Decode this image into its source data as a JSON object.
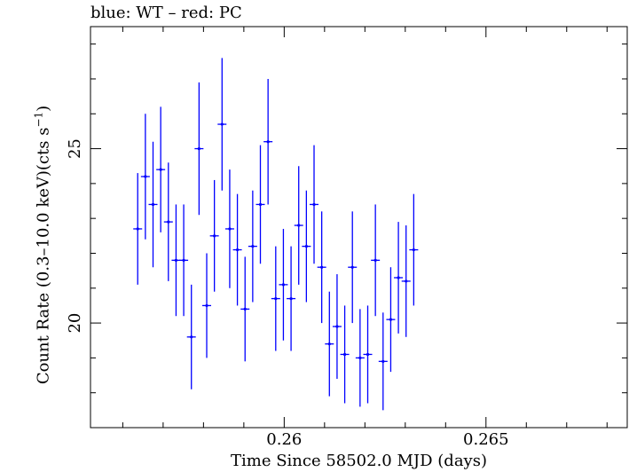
{
  "title": "blue: WT – red: PC",
  "chart_data": {
    "type": "scatter",
    "title": "blue: WT – red: PC",
    "xlabel": "Time Since 58502.0 MJD (days)",
    "ylabel_main": "Count Rate (0.3–10.0 keV)(cts s",
    "ylabel_sup": "−1",
    "ylabel_end": ")",
    "xlim": [
      0.2552,
      0.2685
    ],
    "ylim": [
      17.0,
      28.5
    ],
    "xticks_major": [
      0.26,
      0.265
    ],
    "xtick_labels": [
      "0.26",
      "0.265"
    ],
    "xticks_minor": [
      0.256,
      0.257,
      0.258,
      0.259,
      0.261,
      0.262,
      0.263,
      0.264,
      0.266,
      0.267,
      0.268
    ],
    "yticks_major": [
      20,
      25
    ],
    "ytick_labels": [
      "20",
      "25"
    ],
    "yticks_minor": [
      18,
      19,
      21,
      22,
      23,
      24,
      26,
      27,
      28
    ],
    "grid": false,
    "x_half_width": 0.00011,
    "series": [
      {
        "color": "#0000ff",
        "points": [
          {
            "x": 0.25637,
            "y": 22.7,
            "err": 1.6
          },
          {
            "x": 0.25656,
            "y": 24.2,
            "err": 1.8
          },
          {
            "x": 0.25675,
            "y": 23.4,
            "err": 1.8
          },
          {
            "x": 0.25694,
            "y": 24.4,
            "err": 1.8
          },
          {
            "x": 0.25713,
            "y": 22.9,
            "err": 1.7
          },
          {
            "x": 0.25732,
            "y": 21.8,
            "err": 1.6
          },
          {
            "x": 0.25751,
            "y": 21.8,
            "err": 1.6
          },
          {
            "x": 0.2577,
            "y": 19.6,
            "err": 1.5
          },
          {
            "x": 0.25789,
            "y": 25.0,
            "err": 1.9
          },
          {
            "x": 0.25808,
            "y": 20.5,
            "err": 1.5
          },
          {
            "x": 0.25827,
            "y": 22.5,
            "err": 1.6
          },
          {
            "x": 0.25846,
            "y": 25.7,
            "err": 1.9
          },
          {
            "x": 0.25865,
            "y": 22.7,
            "err": 1.7
          },
          {
            "x": 0.25884,
            "y": 22.1,
            "err": 1.6
          },
          {
            "x": 0.25903,
            "y": 20.4,
            "err": 1.5
          },
          {
            "x": 0.25922,
            "y": 22.2,
            "err": 1.6
          },
          {
            "x": 0.25941,
            "y": 23.4,
            "err": 1.7
          },
          {
            "x": 0.2596,
            "y": 25.2,
            "err": 1.8
          },
          {
            "x": 0.25979,
            "y": 20.7,
            "err": 1.5
          },
          {
            "x": 0.25998,
            "y": 21.1,
            "err": 1.6
          },
          {
            "x": 0.26017,
            "y": 20.7,
            "err": 1.5
          },
          {
            "x": 0.26036,
            "y": 22.8,
            "err": 1.7
          },
          {
            "x": 0.26055,
            "y": 22.2,
            "err": 1.6
          },
          {
            "x": 0.26074,
            "y": 23.4,
            "err": 1.7
          },
          {
            "x": 0.26093,
            "y": 21.6,
            "err": 1.6
          },
          {
            "x": 0.26112,
            "y": 19.4,
            "err": 1.5
          },
          {
            "x": 0.26131,
            "y": 19.9,
            "err": 1.5
          },
          {
            "x": 0.2615,
            "y": 19.1,
            "err": 1.4
          },
          {
            "x": 0.26169,
            "y": 21.6,
            "err": 1.6
          },
          {
            "x": 0.26188,
            "y": 19.0,
            "err": 1.4
          },
          {
            "x": 0.26207,
            "y": 19.1,
            "err": 1.4
          },
          {
            "x": 0.26226,
            "y": 21.8,
            "err": 1.6
          },
          {
            "x": 0.26245,
            "y": 18.9,
            "err": 1.4
          },
          {
            "x": 0.26264,
            "y": 20.1,
            "err": 1.5
          },
          {
            "x": 0.26283,
            "y": 21.3,
            "err": 1.6
          },
          {
            "x": 0.26302,
            "y": 21.2,
            "err": 1.6
          },
          {
            "x": 0.26321,
            "y": 22.1,
            "err": 1.6
          }
        ]
      }
    ]
  }
}
